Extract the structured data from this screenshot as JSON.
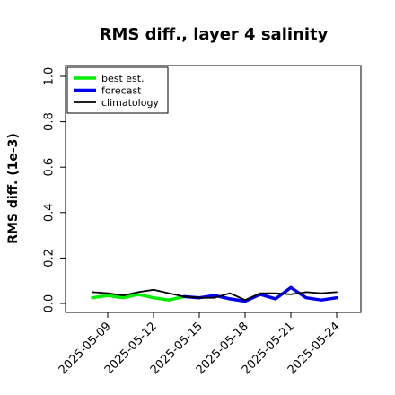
{
  "chart_data": {
    "type": "line",
    "title": "RMS diff., layer 4 salinity",
    "xlabel": "",
    "ylabel": "RMS diff. (1e-3)",
    "ylim": [
      0.0,
      1.0
    ],
    "yticks": [
      "0.0",
      "0.2",
      "0.4",
      "0.6",
      "0.8",
      "1.0"
    ],
    "x": [
      "2025-05-08",
      "2025-05-09",
      "2025-05-10",
      "2025-05-11",
      "2025-05-12",
      "2025-05-13",
      "2025-05-14",
      "2025-05-15",
      "2025-05-16",
      "2025-05-17",
      "2025-05-18",
      "2025-05-19",
      "2025-05-20",
      "2025-05-21",
      "2025-05-22",
      "2025-05-23",
      "2025-05-24"
    ],
    "xticks": [
      "2025-05-09",
      "2025-05-12",
      "2025-05-15",
      "2025-05-18",
      "2025-05-21",
      "2025-05-24"
    ],
    "highlighted_xtick": "2025-05-15",
    "highlight_color": "#228B22",
    "legend_position": "top-left",
    "grid": false,
    "series": [
      {
        "name": "best est.",
        "color": "#00ee00",
        "values": [
          0.025,
          0.035,
          0.025,
          0.04,
          0.025,
          0.015,
          0.03,
          null,
          null,
          null,
          null,
          null,
          null,
          null,
          null,
          null,
          null
        ]
      },
      {
        "name": "forecast",
        "color": "#0000ee",
        "values": [
          null,
          null,
          null,
          null,
          null,
          null,
          0.03,
          0.025,
          0.035,
          0.02,
          0.01,
          0.04,
          0.02,
          0.07,
          0.025,
          0.015,
          0.025
        ]
      },
      {
        "name": "climatology",
        "color": "#000000",
        "values": [
          0.05,
          0.045,
          0.035,
          0.05,
          0.06,
          0.045,
          0.03,
          0.025,
          0.025,
          0.045,
          0.015,
          0.045,
          0.045,
          0.04,
          0.05,
          0.045,
          0.05
        ]
      }
    ]
  }
}
